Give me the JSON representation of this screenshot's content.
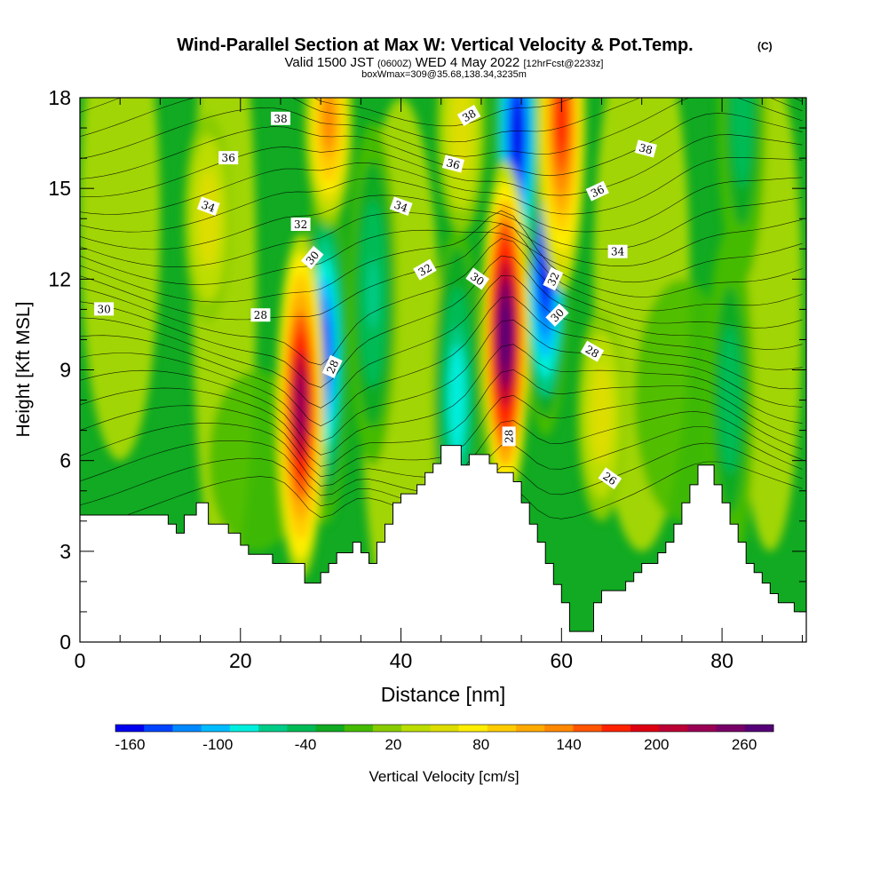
{
  "chart_data": {
    "type": "heatmap",
    "title": "Wind-Parallel Section at Max W: Vertical Velocity & Pot.Temp.",
    "title_mark": "(C)",
    "subtitle": {
      "valid": "Valid 1500 JST",
      "utc": "(0600Z)",
      "date": "WED 4 May 2022",
      "forecast": "[12hrFcst@2233z]"
    },
    "box_info": "boxWmax=309@35.68,138.34,3235m",
    "xlabel": "Distance [nm]",
    "ylabel": "Height [Kft MSL]",
    "xlim": [
      0,
      90.5
    ],
    "ylim": [
      0,
      18
    ],
    "x_ticks": [
      "0",
      "20",
      "40",
      "60",
      "80"
    ],
    "y_ticks": [
      "0",
      "3",
      "6",
      "9",
      "12",
      "15",
      "18"
    ],
    "colorbar": {
      "label": "Vertical Velocity [cm/s]",
      "tick_labels": [
        "-160",
        "-100",
        "-40",
        "20",
        "80",
        "140",
        "200",
        "260"
      ],
      "tick_values": [
        -160,
        -100,
        -40,
        20,
        80,
        140,
        200,
        260
      ],
      "range": [
        -170,
        280
      ],
      "colors": [
        "#0000ee",
        "#0044ff",
        "#0088ff",
        "#00bbff",
        "#00eedd",
        "#00cc88",
        "#00bb55",
        "#11aa22",
        "#44bb00",
        "#88cc00",
        "#bbdd00",
        "#dddd00",
        "#ffee00",
        "#ffcc00",
        "#ffaa00",
        "#ff8800",
        "#ff5500",
        "#ff2200",
        "#dd0011",
        "#bb0033",
        "#990055",
        "#770066",
        "#550077"
      ]
    },
    "theta_contour_labels": [
      {
        "text": "38",
        "x": 25.0,
        "y": 17.3,
        "angle": 0
      },
      {
        "text": "38",
        "x": 48.5,
        "y": 17.4,
        "angle": 30
      },
      {
        "text": "38",
        "x": 70.5,
        "y": 16.3,
        "angle": -15
      },
      {
        "text": "36",
        "x": 18.5,
        "y": 16.0,
        "angle": 0
      },
      {
        "text": "36",
        "x": 46.5,
        "y": 15.8,
        "angle": -15
      },
      {
        "text": "36",
        "x": 64.5,
        "y": 14.9,
        "angle": 25
      },
      {
        "text": "34",
        "x": 16.0,
        "y": 14.4,
        "angle": -20
      },
      {
        "text": "34",
        "x": 40.0,
        "y": 14.4,
        "angle": -20
      },
      {
        "text": "34",
        "x": 67.0,
        "y": 12.9,
        "angle": 0
      },
      {
        "text": "32",
        "x": 27.5,
        "y": 13.8,
        "angle": 0
      },
      {
        "text": "32",
        "x": 43.0,
        "y": 12.3,
        "angle": 30
      },
      {
        "text": "32",
        "x": 59.0,
        "y": 12.0,
        "angle": 65
      },
      {
        "text": "30",
        "x": 3.0,
        "y": 11.0,
        "angle": 0
      },
      {
        "text": "30",
        "x": 29.0,
        "y": 12.7,
        "angle": 50
      },
      {
        "text": "30",
        "x": 49.5,
        "y": 12.0,
        "angle": -35
      },
      {
        "text": "30",
        "x": 59.5,
        "y": 10.8,
        "angle": 45
      },
      {
        "text": "28",
        "x": 22.5,
        "y": 10.8,
        "angle": 0
      },
      {
        "text": "28",
        "x": 31.5,
        "y": 9.1,
        "angle": 65
      },
      {
        "text": "28",
        "x": 53.5,
        "y": 6.8,
        "angle": 90
      },
      {
        "text": "28",
        "x": 63.8,
        "y": 9.6,
        "angle": -30
      },
      {
        "text": "26",
        "x": 66.0,
        "y": 5.4,
        "angle": -35
      }
    ],
    "terrain_profile": [
      [
        0,
        4.2
      ],
      [
        11,
        4.2
      ],
      [
        11,
        3.9
      ],
      [
        12,
        3.9
      ],
      [
        12,
        3.6
      ],
      [
        13,
        3.6
      ],
      [
        13,
        4.2
      ],
      [
        14.5,
        4.2
      ],
      [
        14.5,
        4.6
      ],
      [
        16,
        4.6
      ],
      [
        16,
        3.9
      ],
      [
        18.5,
        3.9
      ],
      [
        18.5,
        3.6
      ],
      [
        20,
        3.6
      ],
      [
        20,
        3.2
      ],
      [
        21,
        3.2
      ],
      [
        21,
        2.9
      ],
      [
        24,
        2.9
      ],
      [
        24,
        2.6
      ],
      [
        28,
        2.6
      ],
      [
        28,
        1.95
      ],
      [
        30,
        1.95
      ],
      [
        30,
        2.3
      ],
      [
        31,
        2.3
      ],
      [
        31,
        2.6
      ],
      [
        32,
        2.6
      ],
      [
        32,
        2.95
      ],
      [
        34,
        2.95
      ],
      [
        34,
        3.3
      ],
      [
        35,
        3.3
      ],
      [
        35,
        2.95
      ],
      [
        36,
        2.95
      ],
      [
        36,
        2.6
      ],
      [
        37,
        2.6
      ],
      [
        37,
        3.3
      ],
      [
        38,
        3.3
      ],
      [
        38,
        3.9
      ],
      [
        39,
        3.9
      ],
      [
        39,
        4.6
      ],
      [
        40,
        4.6
      ],
      [
        40,
        4.9
      ],
      [
        42,
        4.9
      ],
      [
        42,
        5.2
      ],
      [
        43,
        5.2
      ],
      [
        43,
        5.6
      ],
      [
        44,
        5.6
      ],
      [
        44,
        5.9
      ],
      [
        45,
        5.9
      ],
      [
        45,
        6.5
      ],
      [
        47.5,
        6.5
      ],
      [
        47.5,
        5.85
      ],
      [
        48.5,
        5.85
      ],
      [
        48.5,
        6.2
      ],
      [
        51,
        6.2
      ],
      [
        51,
        5.9
      ],
      [
        52,
        5.9
      ],
      [
        52,
        5.6
      ],
      [
        54,
        5.6
      ],
      [
        54,
        5.3
      ],
      [
        55,
        5.3
      ],
      [
        55,
        4.6
      ],
      [
        56,
        4.6
      ],
      [
        56,
        3.9
      ],
      [
        57,
        3.9
      ],
      [
        57,
        3.3
      ],
      [
        58,
        3.3
      ],
      [
        58,
        2.6
      ],
      [
        59,
        2.6
      ],
      [
        59,
        1.9
      ],
      [
        60,
        1.9
      ],
      [
        60,
        1.3
      ],
      [
        61,
        1.3
      ],
      [
        61,
        0.35
      ],
      [
        64,
        0.35
      ],
      [
        64,
        1.3
      ],
      [
        65,
        1.3
      ],
      [
        65,
        1.7
      ],
      [
        68,
        1.7
      ],
      [
        68,
        2.0
      ],
      [
        69,
        2.0
      ],
      [
        69,
        2.3
      ],
      [
        70,
        2.3
      ],
      [
        70,
        2.6
      ],
      [
        72,
        2.6
      ],
      [
        72,
        2.95
      ],
      [
        73,
        2.95
      ],
      [
        73,
        3.3
      ],
      [
        74,
        3.3
      ],
      [
        74,
        3.9
      ],
      [
        75,
        3.9
      ],
      [
        75,
        4.6
      ],
      [
        76,
        4.6
      ],
      [
        76,
        5.2
      ],
      [
        77,
        5.2
      ],
      [
        77,
        5.85
      ],
      [
        79,
        5.85
      ],
      [
        79,
        5.2
      ],
      [
        80,
        5.2
      ],
      [
        80,
        4.6
      ],
      [
        81,
        4.6
      ],
      [
        81,
        3.9
      ],
      [
        82,
        3.9
      ],
      [
        82,
        3.3
      ],
      [
        83,
        3.3
      ],
      [
        83,
        2.6
      ],
      [
        84,
        2.6
      ],
      [
        84,
        2.3
      ],
      [
        85,
        2.3
      ],
      [
        85,
        1.95
      ],
      [
        86,
        1.95
      ],
      [
        86,
        1.6
      ],
      [
        87,
        1.6
      ],
      [
        87,
        1.3
      ],
      [
        89,
        1.3
      ],
      [
        89,
        1.0
      ],
      [
        90.5,
        1.0
      ]
    ],
    "updraft_cores": [
      {
        "x": 27.5,
        "y": 7.8,
        "w": 230
      },
      {
        "x": 53.0,
        "y": 10.2,
        "w": 280
      },
      {
        "x": 31.0,
        "y": 17.2,
        "w": 130
      },
      {
        "x": 60.0,
        "y": 17.3,
        "w": 170
      },
      {
        "x": 47.5,
        "y": 17.0,
        "w": 60
      },
      {
        "x": 16.0,
        "y": 14.0,
        "w": 60
      },
      {
        "x": 65.0,
        "y": 7.5,
        "w": 60
      }
    ],
    "downdraft_cores": [
      {
        "x": 30.5,
        "y": 9.6,
        "w": -150
      },
      {
        "x": 58.0,
        "y": 12.5,
        "w": -160
      },
      {
        "x": 54.5,
        "y": 16.8,
        "w": -160
      },
      {
        "x": 47.0,
        "y": 8.0,
        "w": -90
      },
      {
        "x": 36.5,
        "y": 11.5,
        "w": -60
      },
      {
        "x": 81.0,
        "y": 8.0,
        "w": -50
      },
      {
        "x": 82.5,
        "y": 17.5,
        "w": -50
      }
    ]
  }
}
